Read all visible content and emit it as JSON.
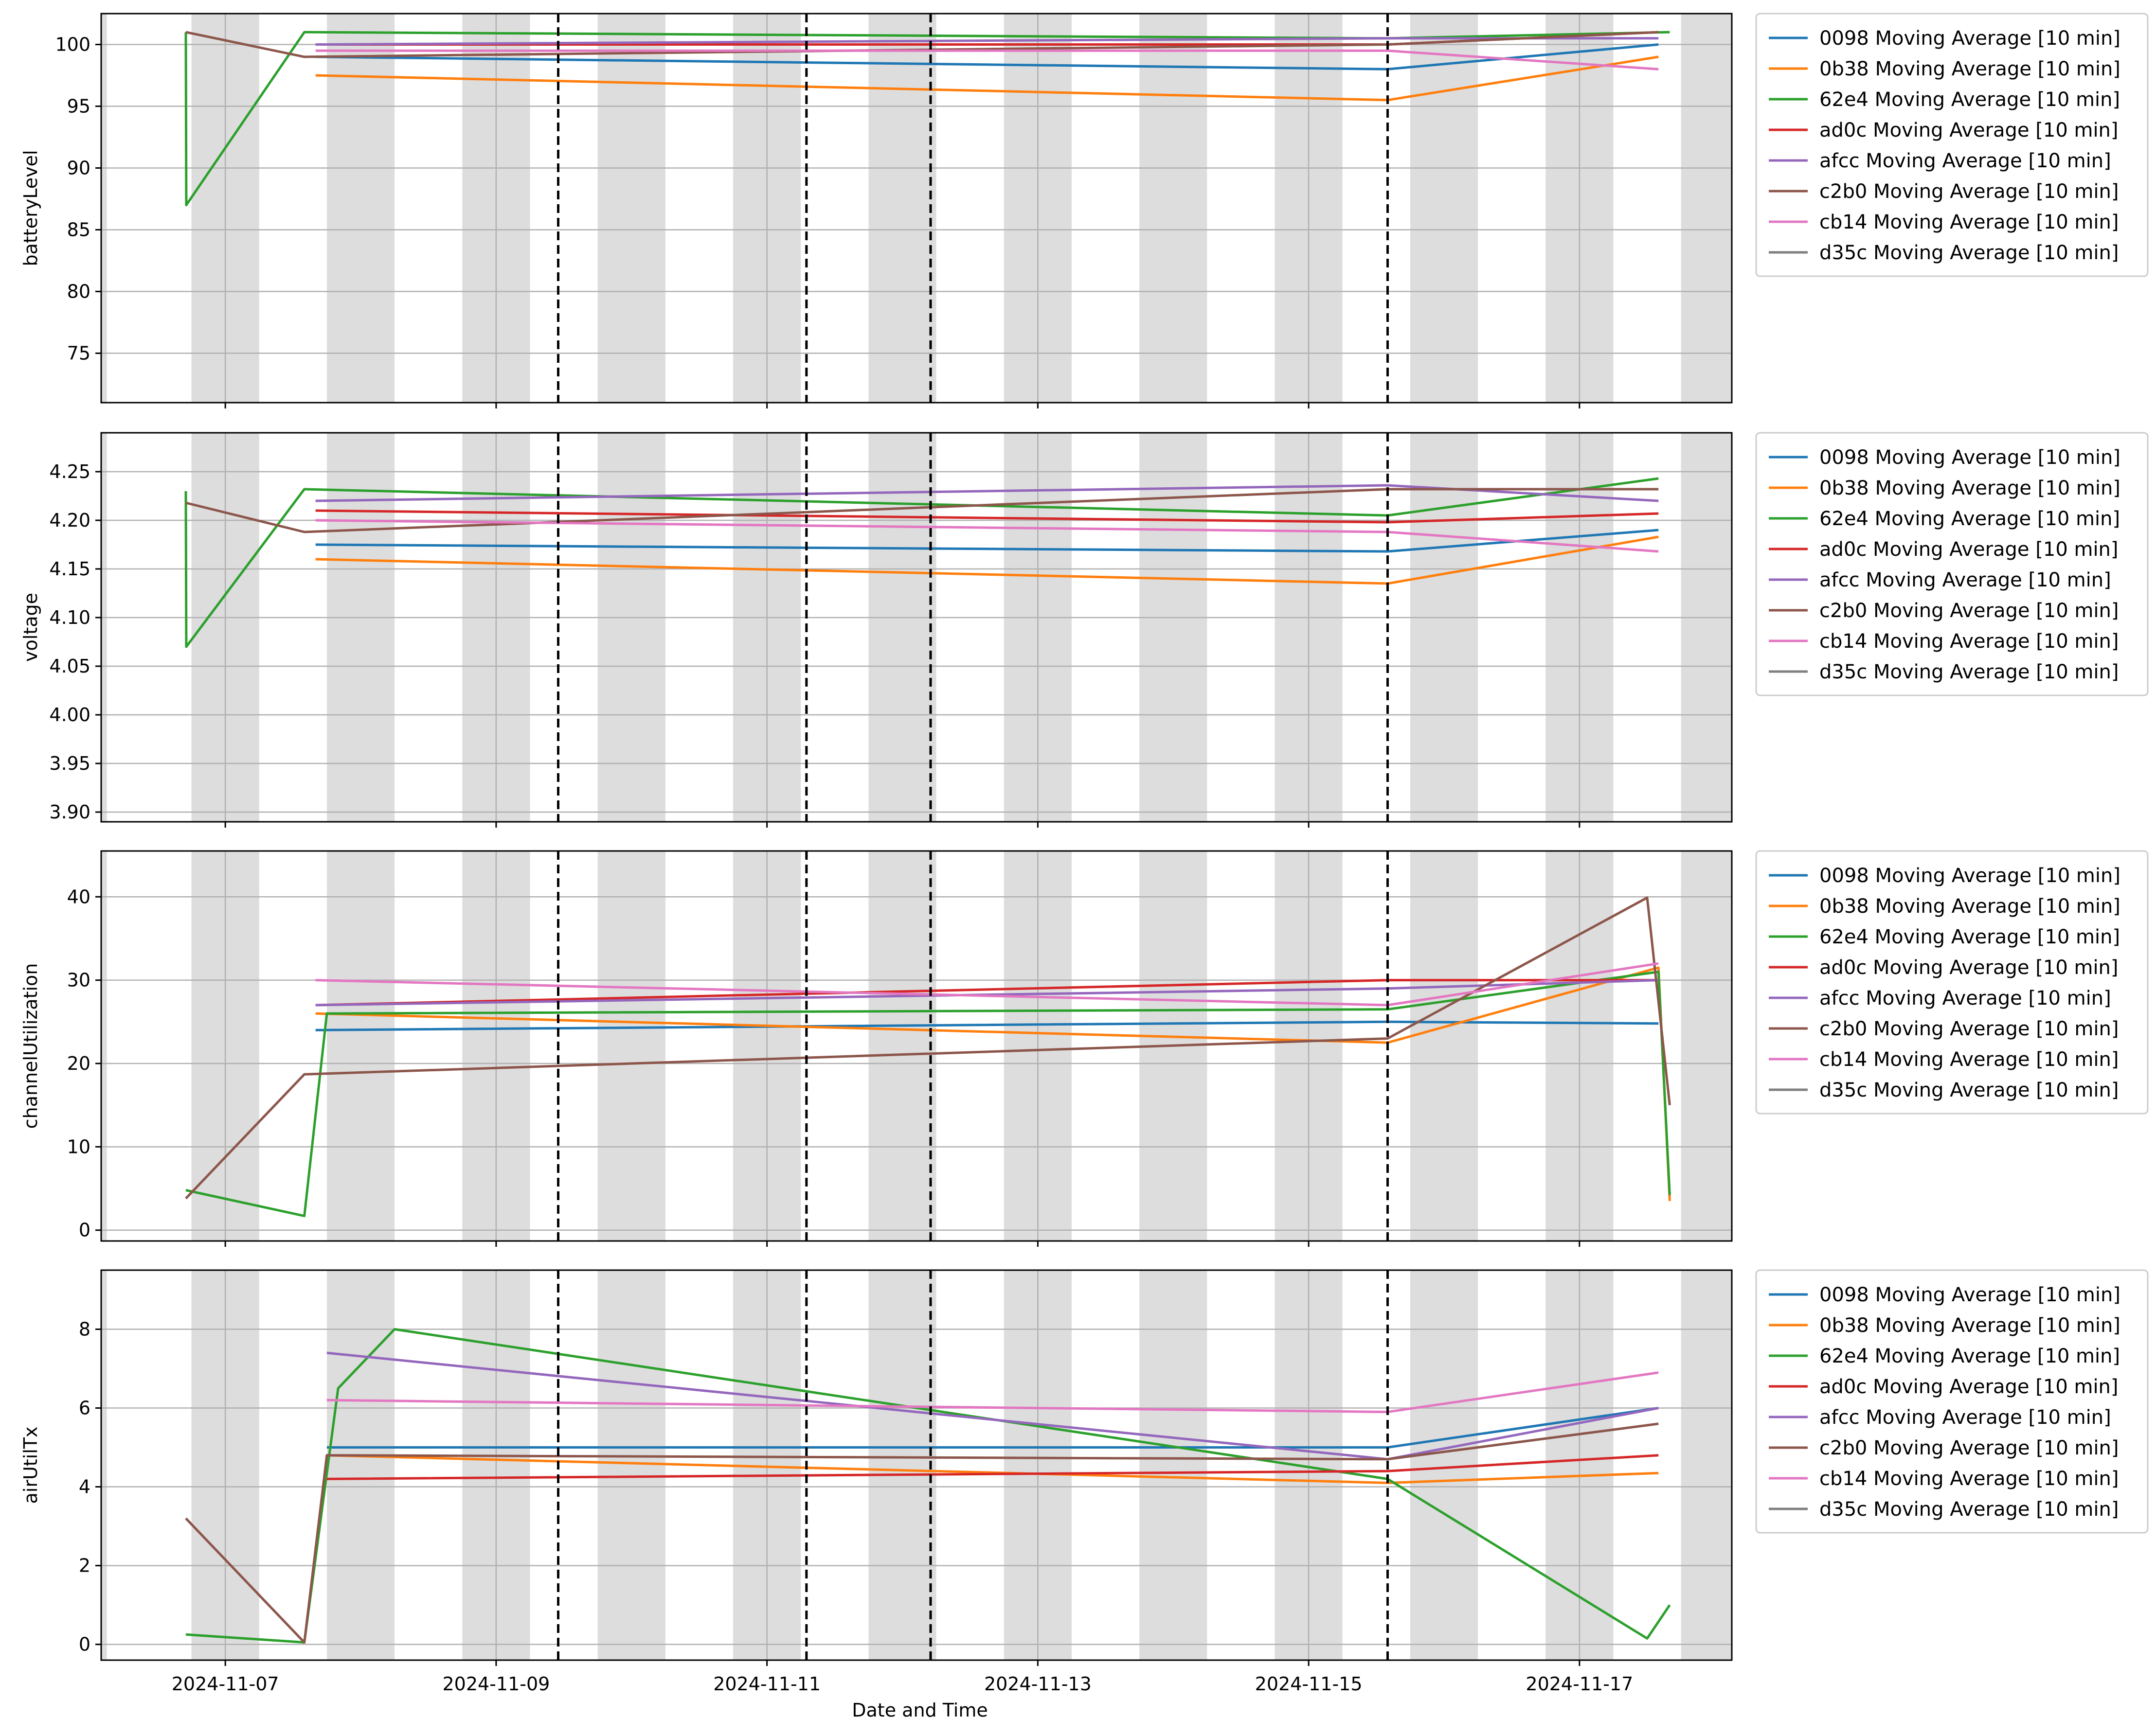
{
  "chart_data": {
    "type": "line",
    "xlabel": "Date and Time",
    "x_tick_labels": [
      "2024-11-07",
      "2024-11-09",
      "2024-11-11",
      "2024-11-13",
      "2024-11-15",
      "2024-11-17"
    ],
    "x_ticks": [
      "2024-11-07",
      "2024-11-09",
      "2024-11-11",
      "2024-11-13",
      "2024-11-15",
      "2024-11-17"
    ],
    "xlim": [
      "2024-11-06 02:00",
      "2024-11-18 03:00"
    ],
    "grid": true,
    "legend_position": "outside-right",
    "shaded_bands": [
      [
        "2024-11-06 00:00",
        "2024-11-06 03:00"
      ],
      [
        "2024-11-06 18:00",
        "2024-11-07 06:00"
      ],
      [
        "2024-11-07 18:00",
        "2024-11-08 06:00"
      ],
      [
        "2024-11-08 18:00",
        "2024-11-09 06:00"
      ],
      [
        "2024-11-09 18:00",
        "2024-11-10 06:00"
      ],
      [
        "2024-11-10 18:00",
        "2024-11-11 06:00"
      ],
      [
        "2024-11-11 18:00",
        "2024-11-12 06:00"
      ],
      [
        "2024-11-12 18:00",
        "2024-11-13 06:00"
      ],
      [
        "2024-11-13 18:00",
        "2024-11-14 06:00"
      ],
      [
        "2024-11-14 18:00",
        "2024-11-15 06:00"
      ],
      [
        "2024-11-15 18:00",
        "2024-11-16 06:00"
      ],
      [
        "2024-11-16 18:00",
        "2024-11-17 06:00"
      ],
      [
        "2024-11-17 18:00",
        "2024-11-18 06:00"
      ]
    ],
    "vertical_markers": [
      "2024-11-09 11:00",
      "2024-11-11 07:00",
      "2024-11-12 05:00",
      "2024-11-15 14:00"
    ],
    "series_colors": [
      "#1f77b4",
      "#ff7f0e",
      "#2ca02c",
      "#d62728",
      "#9467bd",
      "#8c564b",
      "#e377c2",
      "#7f7f7f"
    ],
    "legend_entries": [
      "0098 Moving Average [10 min]",
      "0b38 Moving Average [10 min]",
      "62e4 Moving Average [10 min]",
      "ad0c Moving Average [10 min]",
      "afcc Moving Average [10 min]",
      "c2b0 Moving Average [10 min]",
      "cb14 Moving Average [10 min]",
      "d35c Moving Average [10 min]"
    ],
    "panels": [
      {
        "ylabel": "batteryLevel",
        "ylim": [
          71,
          102.5
        ],
        "y_ticks": [
          75,
          80,
          85,
          90,
          95,
          100
        ],
        "y_tick_labels": [
          "75",
          "80",
          "85",
          "90",
          "95",
          "100"
        ],
        "series": [
          {
            "name": "0098 Moving Average [10 min]",
            "x": [
              "2024-11-07 16:00",
              "2024-11-15 14:00",
              "2024-11-17 14:00"
            ],
            "y": [
              99,
              98,
              100
            ]
          },
          {
            "name": "0b38 Moving Average [10 min]",
            "x": [
              "2024-11-07 16:00",
              "2024-11-15 14:00",
              "2024-11-17 14:00"
            ],
            "y": [
              97.5,
              95.5,
              99
            ]
          },
          {
            "name": "62e4 Moving Average [10 min]",
            "x": [
              "2024-11-06 17:00",
              "2024-11-06 17:05",
              "2024-11-07 14:00",
              "2024-11-15 14:00",
              "2024-11-17 16:00"
            ],
            "y": [
              101,
              87,
              101,
              100.5,
              101
            ]
          },
          {
            "name": "ad0c Moving Average [10 min]",
            "x": [
              "2024-11-07 16:00",
              "2024-11-15 14:00",
              "2024-11-17 14:00"
            ],
            "y": [
              100,
              100,
              101
            ]
          },
          {
            "name": "afcc Moving Average [10 min]",
            "x": [
              "2024-11-07 16:00",
              "2024-11-15 14:00",
              "2024-11-17 14:00"
            ],
            "y": [
              100,
              100.5,
              100.5
            ]
          },
          {
            "name": "c2b0 Moving Average [10 min]",
            "x": [
              "2024-11-06 17:00",
              "2024-11-07 14:00",
              "2024-11-15 14:00",
              "2024-11-17 14:00"
            ],
            "y": [
              101,
              99,
              100,
              101
            ]
          },
          {
            "name": "cb14 Moving Average [10 min]",
            "x": [
              "2024-11-07 16:00",
              "2024-11-15 14:00",
              "2024-11-17 14:00"
            ],
            "y": [
              99.5,
              99.5,
              98
            ]
          },
          {
            "name": "d35c Moving Average [10 min]",
            "x": [],
            "y": []
          }
        ]
      },
      {
        "ylabel": "voltage",
        "ylim": [
          3.89,
          4.29
        ],
        "y_ticks": [
          3.9,
          3.95,
          4.0,
          4.05,
          4.1,
          4.15,
          4.2,
          4.25
        ],
        "y_tick_labels": [
          "3.90",
          "3.95",
          "4.00",
          "4.05",
          "4.10",
          "4.15",
          "4.20",
          "4.25"
        ],
        "series": [
          {
            "name": "0098 Moving Average [10 min]",
            "x": [
              "2024-11-07 16:00",
              "2024-11-15 14:00",
              "2024-11-17 14:00"
            ],
            "y": [
              4.175,
              4.168,
              4.19
            ]
          },
          {
            "name": "0b38 Moving Average [10 min]",
            "x": [
              "2024-11-07 16:00",
              "2024-11-15 14:00",
              "2024-11-17 14:00"
            ],
            "y": [
              4.16,
              4.135,
              4.183
            ]
          },
          {
            "name": "62e4 Moving Average [10 min]",
            "x": [
              "2024-11-06 17:00",
              "2024-11-06 17:05",
              "2024-11-07 14:00",
              "2024-11-15 14:00",
              "2024-11-17 14:00"
            ],
            "y": [
              4.23,
              4.07,
              4.232,
              4.205,
              4.243
            ]
          },
          {
            "name": "ad0c Moving Average [10 min]",
            "x": [
              "2024-11-07 16:00",
              "2024-11-15 14:00",
              "2024-11-17 14:00"
            ],
            "y": [
              4.21,
              4.198,
              4.207
            ]
          },
          {
            "name": "afcc Moving Average [10 min]",
            "x": [
              "2024-11-07 16:00",
              "2024-11-15 14:00",
              "2024-11-17 14:00"
            ],
            "y": [
              4.22,
              4.236,
              4.22
            ]
          },
          {
            "name": "c2b0 Moving Average [10 min]",
            "x": [
              "2024-11-06 17:00",
              "2024-11-07 14:00",
              "2024-11-15 14:00",
              "2024-11-17 14:00"
            ],
            "y": [
              4.218,
              4.188,
              4.232,
              4.232
            ]
          },
          {
            "name": "cb14 Moving Average [10 min]",
            "x": [
              "2024-11-07 16:00",
              "2024-11-15 14:00",
              "2024-11-17 14:00"
            ],
            "y": [
              4.2,
              4.188,
              4.168
            ]
          },
          {
            "name": "d35c Moving Average [10 min]",
            "x": [],
            "y": []
          }
        ]
      },
      {
        "ylabel": "channelUtilization",
        "ylim": [
          -1.3,
          45.5
        ],
        "y_ticks": [
          0,
          10,
          20,
          30,
          40
        ],
        "y_tick_labels": [
          "0",
          "10",
          "20",
          "30",
          "40"
        ],
        "series": [
          {
            "name": "0098 Moving Average [10 min]",
            "x": [
              "2024-11-07 16:00",
              "2024-11-15 14:00",
              "2024-11-17 14:00"
            ],
            "y": [
              24,
              25,
              24.8
            ]
          },
          {
            "name": "0b38 Moving Average [10 min]",
            "x": [
              "2024-11-07 16:00",
              "2024-11-15 14:00",
              "2024-11-17 14:00",
              "2024-11-17 16:00"
            ],
            "y": [
              26,
              22.5,
              31.5,
              3.5
            ]
          },
          {
            "name": "62e4 Moving Average [10 min]",
            "x": [
              "2024-11-06 17:00",
              "2024-11-07 14:00",
              "2024-11-07 18:00",
              "2024-11-15 14:00",
              "2024-11-17 14:00",
              "2024-11-17 16:00"
            ],
            "y": [
              4.8,
              1.7,
              26,
              26.5,
              31,
              4.2
            ]
          },
          {
            "name": "ad0c Moving Average [10 min]",
            "x": [
              "2024-11-07 16:00",
              "2024-11-15 14:00",
              "2024-11-17 14:00"
            ],
            "y": [
              27,
              30,
              30
            ]
          },
          {
            "name": "afcc Moving Average [10 min]",
            "x": [
              "2024-11-07 16:00",
              "2024-11-15 14:00",
              "2024-11-17 14:00"
            ],
            "y": [
              27,
              29,
              30
            ]
          },
          {
            "name": "c2b0 Moving Average [10 min]",
            "x": [
              "2024-11-06 17:00",
              "2024-11-07 14:00",
              "2024-11-15 14:00",
              "2024-11-17 12:00",
              "2024-11-17 16:00"
            ],
            "y": [
              3.8,
              18.7,
              23,
              39.9,
              15
            ]
          },
          {
            "name": "cb14 Moving Average [10 min]",
            "x": [
              "2024-11-07 16:00",
              "2024-11-15 14:00",
              "2024-11-17 14:00"
            ],
            "y": [
              30,
              27,
              32
            ]
          },
          {
            "name": "d35c Moving Average [10 min]",
            "x": [],
            "y": []
          }
        ]
      },
      {
        "ylabel": "airUtilTx",
        "ylim": [
          -0.4,
          9.5
        ],
        "y_ticks": [
          0,
          2,
          4,
          6,
          8
        ],
        "y_tick_labels": [
          "0",
          "2",
          "4",
          "6",
          "8"
        ],
        "series": [
          {
            "name": "0098 Moving Average [10 min]",
            "x": [
              "2024-11-07 18:00",
              "2024-11-15 14:00",
              "2024-11-17 14:00"
            ],
            "y": [
              5,
              5,
              6
            ]
          },
          {
            "name": "0b38 Moving Average [10 min]",
            "x": [
              "2024-11-07 18:00",
              "2024-11-15 14:00",
              "2024-11-17 14:00"
            ],
            "y": [
              4.8,
              4.1,
              4.35
            ]
          },
          {
            "name": "62e4 Moving Average [10 min]",
            "x": [
              "2024-11-06 17:00",
              "2024-11-07 14:00",
              "2024-11-07 20:00",
              "2024-11-08 06:00",
              "2024-11-15 14:00",
              "2024-11-17 12:00",
              "2024-11-17 16:00"
            ],
            "y": [
              0.25,
              0.05,
              6.5,
              8,
              4.2,
              0.15,
              1
            ]
          },
          {
            "name": "ad0c Moving Average [10 min]",
            "x": [
              "2024-11-07 18:00",
              "2024-11-15 14:00",
              "2024-11-17 14:00"
            ],
            "y": [
              4.2,
              4.4,
              4.8
            ]
          },
          {
            "name": "afcc Moving Average [10 min]",
            "x": [
              "2024-11-07 18:00",
              "2024-11-15 14:00",
              "2024-11-17 14:00"
            ],
            "y": [
              7.4,
              4.7,
              6
            ]
          },
          {
            "name": "c2b0 Moving Average [10 min]",
            "x": [
              "2024-11-06 17:00",
              "2024-11-07 14:00",
              "2024-11-07 18:00",
              "2024-11-15 14:00",
              "2024-11-17 14:00"
            ],
            "y": [
              3.2,
              0.05,
              4.8,
              4.7,
              5.6
            ]
          },
          {
            "name": "cb14 Moving Average [10 min]",
            "x": [
              "2024-11-07 18:00",
              "2024-11-15 14:00",
              "2024-11-17 14:00"
            ],
            "y": [
              6.2,
              5.9,
              6.9
            ]
          },
          {
            "name": "d35c Moving Average [10 min]",
            "x": [],
            "y": []
          }
        ]
      }
    ]
  }
}
